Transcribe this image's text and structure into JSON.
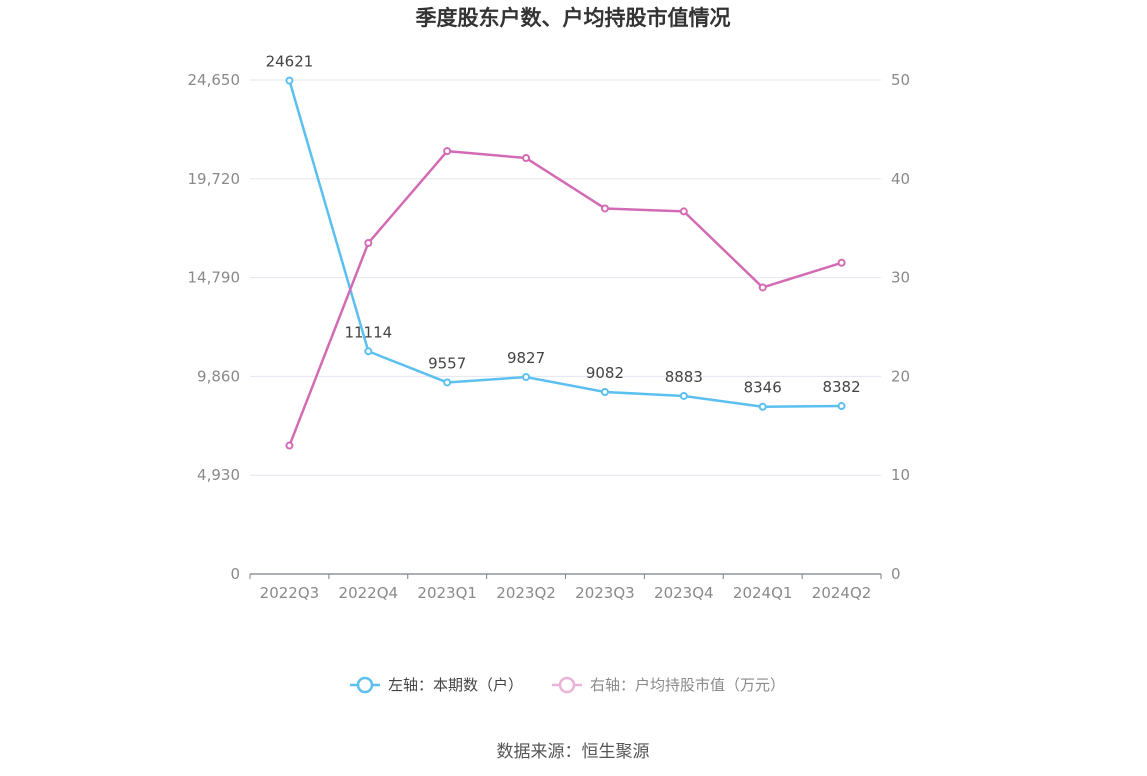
{
  "chart_data": {
    "type": "line",
    "title": "季度股东户数、户均持股市值情况",
    "categories": [
      "2022Q3",
      "2022Q4",
      "2023Q1",
      "2023Q2",
      "2023Q3",
      "2023Q4",
      "2024Q1",
      "2024Q2"
    ],
    "left_axis": {
      "ylim": [
        0,
        24650
      ],
      "ticks": [
        "0",
        "4,930",
        "9,860",
        "14,790",
        "19,720",
        "24,650"
      ],
      "tick_values": [
        0,
        4930,
        9860,
        14790,
        19720,
        24650
      ]
    },
    "right_axis": {
      "ylim": [
        0,
        50
      ],
      "ticks": [
        "0",
        "10",
        "20",
        "30",
        "40",
        "50"
      ],
      "tick_values": [
        0,
        10,
        20,
        30,
        40,
        50
      ]
    },
    "series": [
      {
        "name": "左轴：本期数（户）",
        "axis": "left",
        "color": "#5bc0f0",
        "values": [
          24621,
          11114,
          9557,
          9827,
          9082,
          8883,
          8346,
          8382
        ],
        "labels": [
          "24621",
          "11114",
          "9557",
          "9827",
          "9082",
          "8883",
          "8346",
          "8382"
        ]
      },
      {
        "name": "右轴：户均持股市值（万元）",
        "axis": "right",
        "color": "#d36bb4",
        "legend_color": "#e8b4d8",
        "values": [
          13.0,
          33.5,
          42.8,
          42.1,
          37.0,
          36.7,
          29.0,
          31.5
        ]
      }
    ],
    "grid": true,
    "legend_position": "bottom"
  },
  "source": "数据来源：恒生聚源"
}
